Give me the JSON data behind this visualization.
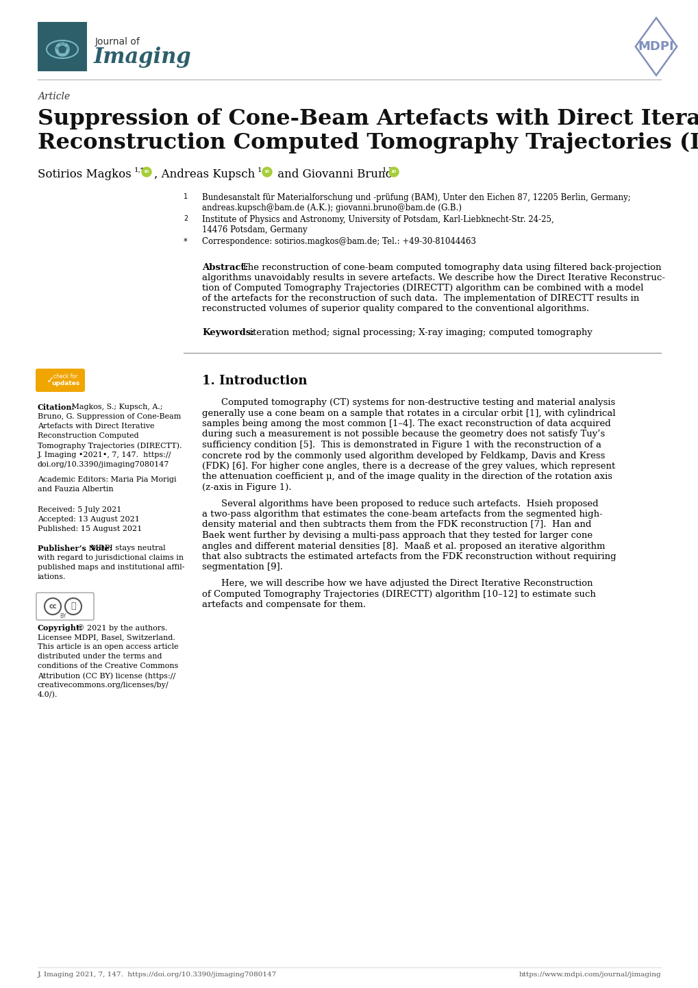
{
  "bg_color": "#ffffff",
  "text_color": "#000000",
  "header_line_color": "#aaaaaa",
  "divider_color": "#888888",
  "journal_icon_bg": "#2d5f6b",
  "article_label": "Article",
  "title_line1": "Suppression of Cone-Beam Artefacts with Direct Iterative",
  "title_line2": "Reconstruction Computed Tomography Trajectories (DIRECTT)",
  "footer_left": "J. Imaging 2021, 7, 147.  https://doi.org/10.3390/jimaging7080147",
  "footer_right": "https://www.mdpi.com/journal/jimaging"
}
